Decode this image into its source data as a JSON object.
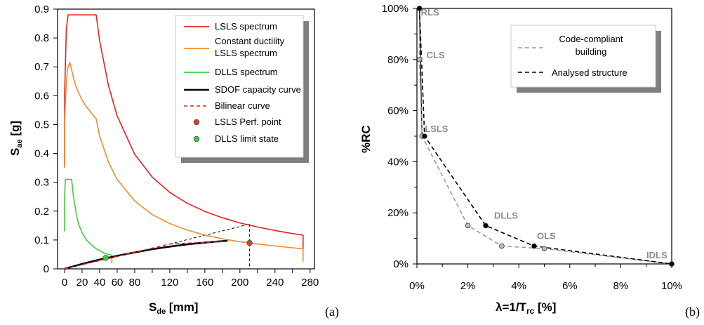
{
  "chart_data": [
    {
      "type": "line",
      "panel_label": "(a)",
      "xlabel_main": "S",
      "xlabel_sub": "de",
      "xlabel_rest": " [mm]",
      "ylabel_main": "S",
      "ylabel_sub": "ae",
      "ylabel_rest": " [g]",
      "xlim": [
        -8,
        285
      ],
      "ylim": [
        0,
        0.9
      ],
      "xticks": [
        0,
        20,
        40,
        60,
        80,
        100,
        120,
        140,
        160,
        180,
        200,
        220,
        240,
        260,
        280
      ],
      "yticks": [
        0,
        0.1,
        0.2,
        0.3,
        0.4,
        0.5,
        0.6,
        0.7,
        0.8,
        0.9
      ],
      "xtick_labels": [
        "0",
        "20",
        "40",
        "60",
        "80",
        "120",
        "160",
        "200",
        "240",
        "280"
      ],
      "ytick_labels": [
        "0",
        "0.1",
        "0.2",
        "0.3",
        "0.4",
        "0.5",
        "0.6",
        "0.7",
        "0.8",
        "0.9"
      ],
      "legend_position": "top-right",
      "series": [
        {
          "name": "LSLS spectrum",
          "color": "#e8201f",
          "style": "solid",
          "x": [
            0,
            0,
            2,
            4,
            8,
            12,
            20,
            30,
            36,
            40,
            50,
            60,
            80,
            100,
            120,
            140,
            160,
            180,
            200,
            220,
            240,
            260,
            272,
            272
          ],
          "y": [
            0.36,
            0.6,
            0.83,
            0.88,
            0.88,
            0.88,
            0.88,
            0.88,
            0.88,
            0.79,
            0.635,
            0.53,
            0.397,
            0.318,
            0.265,
            0.227,
            0.199,
            0.177,
            0.159,
            0.145,
            0.133,
            0.122,
            0.117,
            0.07
          ]
        },
        {
          "name": "Constant ductility LSLS spectrum",
          "name_line1": "Constant ductility",
          "name_line2": "LSLS spectrum",
          "color": "#f28a2e",
          "style": "solid",
          "x": [
            0,
            0,
            1,
            2,
            3,
            4,
            6,
            8,
            12,
            16,
            20,
            24,
            28,
            32,
            36,
            40,
            50,
            60,
            80,
            100,
            120,
            140,
            160,
            180,
            200,
            220,
            240,
            260,
            272,
            272
          ],
          "y": [
            0.35,
            0.5,
            0.58,
            0.64,
            0.68,
            0.7,
            0.715,
            0.69,
            0.64,
            0.61,
            0.585,
            0.565,
            0.55,
            0.535,
            0.52,
            0.46,
            0.37,
            0.31,
            0.235,
            0.188,
            0.157,
            0.134,
            0.117,
            0.104,
            0.094,
            0.086,
            0.079,
            0.073,
            0.069,
            0.025
          ]
        },
        {
          "name": "DLLS spectrum",
          "color": "#3ecc3e",
          "style": "solid",
          "x": [
            0,
            0,
            1,
            2,
            4,
            6,
            8,
            10,
            12,
            14,
            16,
            20,
            25,
            30,
            35,
            40,
            45,
            50,
            54,
            54
          ],
          "y": [
            0.13,
            0.25,
            0.31,
            0.31,
            0.31,
            0.31,
            0.31,
            0.255,
            0.215,
            0.18,
            0.155,
            0.125,
            0.1,
            0.085,
            0.072,
            0.063,
            0.055,
            0.05,
            0.047,
            0.02
          ]
        },
        {
          "name": "SDOF capacity curve",
          "color": "#000000",
          "style": "solid",
          "x": [
            0,
            20,
            40,
            60,
            80,
            100,
            120,
            140,
            160,
            180,
            186
          ],
          "y": [
            0,
            0.017,
            0.032,
            0.045,
            0.057,
            0.068,
            0.077,
            0.085,
            0.091,
            0.096,
            0.097
          ]
        },
        {
          "name": "Bilinear curve",
          "color": "#e8201f",
          "style": "dashed",
          "x": [
            0,
            120,
            186
          ],
          "y": [
            0,
            0.086,
            0.095
          ]
        },
        {
          "name": "LSLS Perf. point",
          "color": "#e03a2a",
          "style": "marker",
          "x": [
            211
          ],
          "y": [
            0.09
          ]
        },
        {
          "name": "DLLS limit state",
          "color": "#3ecc3e",
          "style": "marker",
          "x": [
            47
          ],
          "y": [
            0.038
          ]
        }
      ],
      "extra_lines": [
        {
          "color": "#000000",
          "style": "dashed",
          "x": [
            120,
            211
          ],
          "y": [
            0.086,
            0.155
          ]
        },
        {
          "color": "#000000",
          "style": "dashed",
          "x": [
            211,
            211
          ],
          "y": [
            0.155,
            0
          ]
        }
      ]
    },
    {
      "type": "line",
      "panel_label": "(b)",
      "xlabel": "λ=1/T",
      "xlabel_sub": "rc",
      "xlabel_rest": " [%]",
      "ylabel": "%RC",
      "xlim": [
        0,
        10
      ],
      "ylim": [
        0,
        100
      ],
      "xticks": [
        0,
        1,
        2,
        3,
        4,
        5,
        6,
        7,
        8,
        9,
        10
      ],
      "yticks": [
        0,
        10,
        20,
        30,
        40,
        50,
        60,
        70,
        80,
        90,
        100
      ],
      "xtick_labels": [
        "0%",
        "2%",
        "4%",
        "6%",
        "8%",
        "10%"
      ],
      "ytick_labels": [
        "0%",
        "20%",
        "40%",
        "60%",
        "80%",
        "100%"
      ],
      "legend_position": "top-right",
      "series": [
        {
          "name": "Code-compliant building",
          "name_line1": "Code-compliant",
          "name_line2": "building",
          "color": "#9a9a9a",
          "style": "dashed",
          "x": [
            0.1,
            0.1,
            0.2,
            2.0,
            3.33,
            5.0,
            10.0
          ],
          "y": [
            100,
            80,
            50,
            15,
            7,
            6,
            0
          ]
        },
        {
          "name": "Analysed structure",
          "color": "#000000",
          "style": "dashed",
          "x": [
            0.1,
            0.3,
            2.7,
            4.6,
            10.0
          ],
          "y": [
            100,
            50,
            15,
            7,
            0
          ]
        }
      ],
      "annotations": [
        {
          "text": "RLS",
          "x": 0.1,
          "y": 100
        },
        {
          "text": "CLS",
          "x": 0.1,
          "y": 80
        },
        {
          "text": "LSLS",
          "x": 0.2,
          "y": 50
        },
        {
          "text": "DLLS",
          "x": 2.7,
          "y": 15
        },
        {
          "text": "OLS",
          "x": 4.6,
          "y": 7
        },
        {
          "text": "IDLS",
          "x": 10.0,
          "y": 0
        }
      ]
    }
  ]
}
